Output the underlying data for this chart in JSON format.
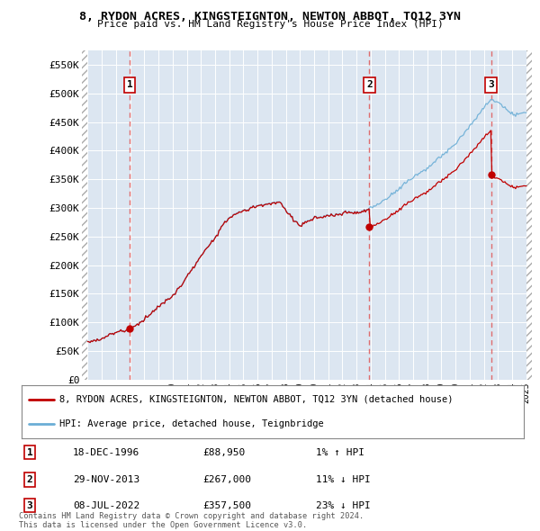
{
  "title_line1": "8, RYDON ACRES, KINGSTEIGNTON, NEWTON ABBOT, TQ12 3YN",
  "title_line2": "Price paid vs. HM Land Registry's House Price Index (HPI)",
  "ylim": [
    0,
    575000
  ],
  "yticks": [
    0,
    50000,
    100000,
    150000,
    200000,
    250000,
    300000,
    350000,
    400000,
    450000,
    500000,
    550000
  ],
  "ytick_labels": [
    "£0",
    "£50K",
    "£100K",
    "£150K",
    "£200K",
    "£250K",
    "£300K",
    "£350K",
    "£400K",
    "£450K",
    "£500K",
    "£550K"
  ],
  "xlim_start": 1993.6,
  "xlim_end": 2025.4,
  "hpi_color": "#6baed6",
  "price_color": "#c00000",
  "vline_color": "#e06060",
  "sale_dates": [
    1996.96,
    2013.91,
    2022.52
  ],
  "sale_prices": [
    88950,
    267000,
    357500
  ],
  "sale_labels": [
    "1",
    "2",
    "3"
  ],
  "transaction_table": [
    {
      "label": "1",
      "date": "18-DEC-1996",
      "price": "£88,950",
      "hpi": "1% ↑ HPI"
    },
    {
      "label": "2",
      "date": "29-NOV-2013",
      "price": "£267,000",
      "hpi": "11% ↓ HPI"
    },
    {
      "label": "3",
      "date": "08-JUL-2022",
      "price": "£357,500",
      "hpi": "23% ↓ HPI"
    }
  ],
  "legend_line1": "8, RYDON ACRES, KINGSTEIGNTON, NEWTON ABBOT, TQ12 3YN (detached house)",
  "legend_line2": "HPI: Average price, detached house, Teignbridge",
  "footer_text": "Contains HM Land Registry data © Crown copyright and database right 2024.\nThis data is licensed under the Open Government Licence v3.0.",
  "plot_bg_color": "#dce6f1",
  "grid_color": "#ffffff",
  "hatch_region_color": "#c8c8c8"
}
